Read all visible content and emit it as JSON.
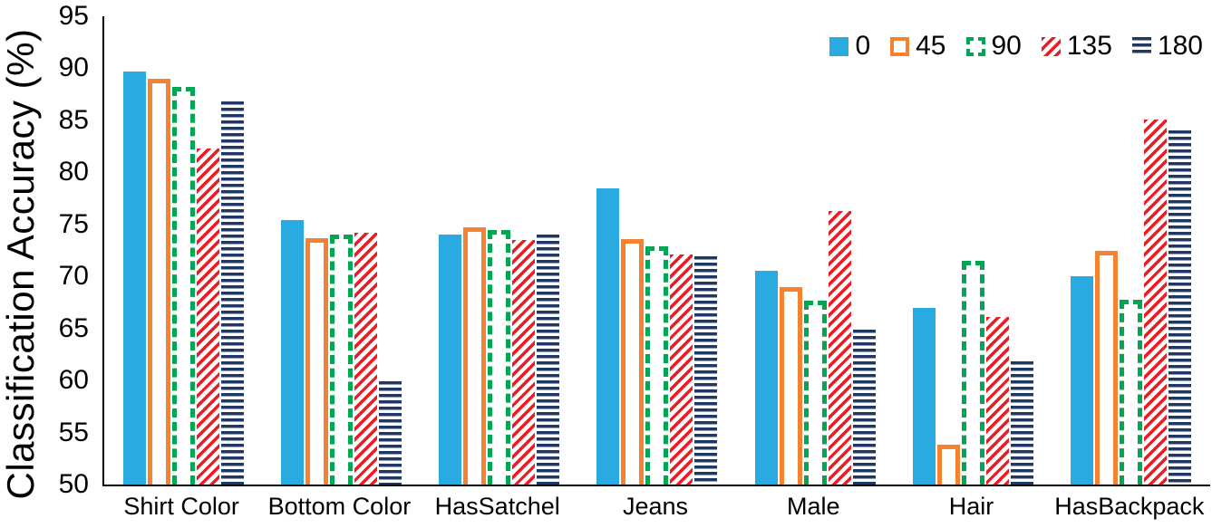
{
  "figure": {
    "background": "#FFFFFF",
    "axis_color": "#000000"
  },
  "chart_data": {
    "type": "bar",
    "title": "",
    "xlabel": "",
    "ylabel": "Classification Accuracy (%)",
    "ylim": [
      50,
      95
    ],
    "ytick_step": 5,
    "grid": false,
    "legend_position": "top-right",
    "categories": [
      "Shirt Color",
      "Bottom Color",
      "HasSatchel",
      "Jeans",
      "Male",
      "Hair",
      "HasBackpack"
    ],
    "series": [
      {
        "name": "0",
        "style": "solid",
        "color": "#29ABE2",
        "values": [
          89.7,
          75.4,
          74.0,
          78.5,
          70.5,
          67.0,
          70.0
        ]
      },
      {
        "name": "45",
        "style": "outline",
        "color": "#F58230",
        "values": [
          89.0,
          73.7,
          74.7,
          73.6,
          69.0,
          53.8,
          72.5
        ]
      },
      {
        "name": "90",
        "style": "dashed-outline",
        "color": "#00A651",
        "values": [
          88.2,
          74.0,
          74.5,
          72.9,
          67.7,
          71.5,
          67.8
        ]
      },
      {
        "name": "135",
        "style": "diagonal-stripes",
        "color": "#ED1C24",
        "values": [
          82.3,
          74.2,
          73.5,
          72.1,
          76.3,
          66.1,
          85.1
        ]
      },
      {
        "name": "180",
        "style": "horizontal-stripes",
        "color": "#1F3864",
        "values": [
          86.8,
          59.9,
          74.0,
          71.9,
          64.9,
          61.8,
          84.0
        ]
      }
    ]
  }
}
